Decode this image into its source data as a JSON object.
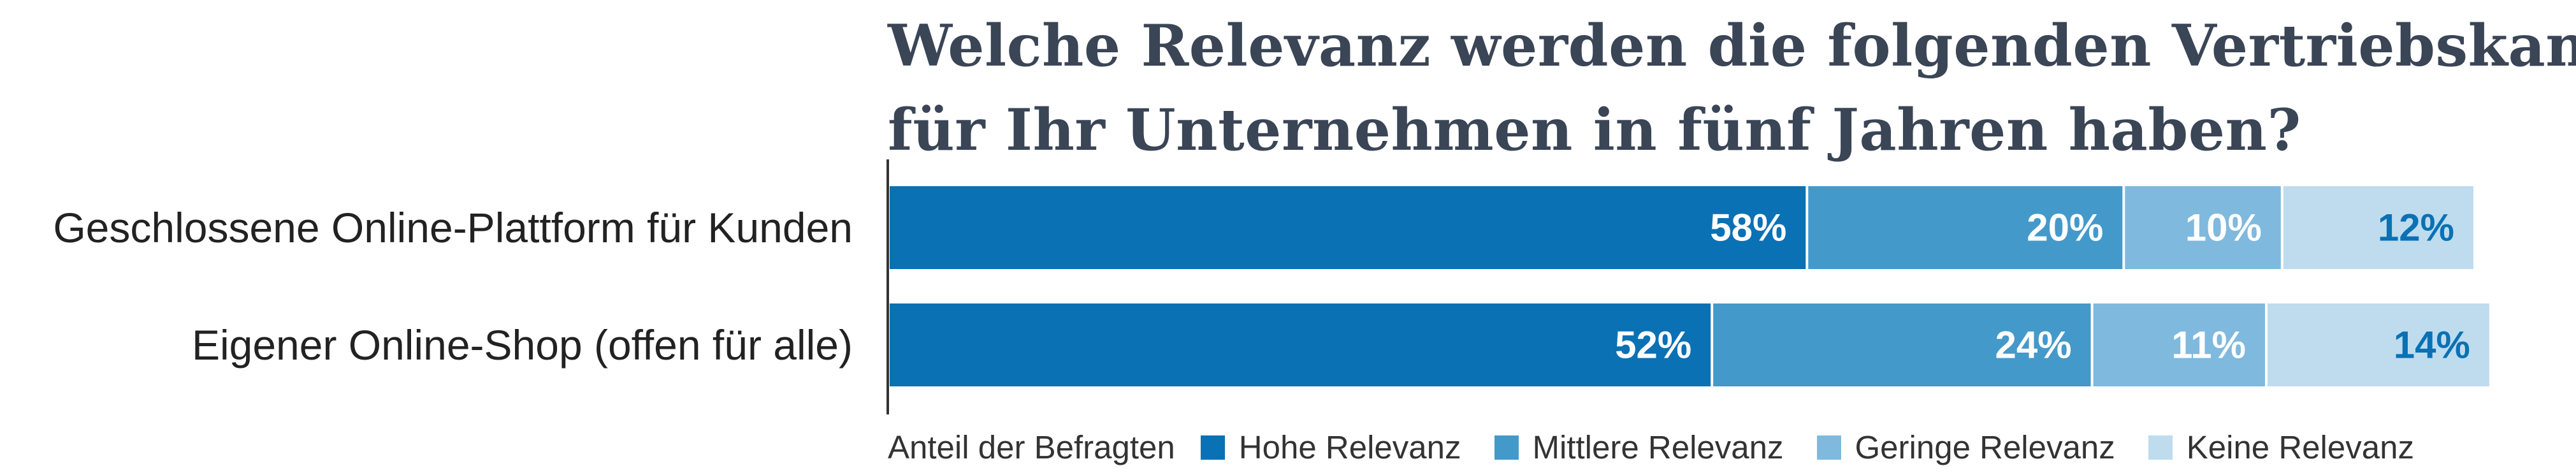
{
  "chart_data": {
    "type": "bar",
    "orientation": "horizontal",
    "stacked": true,
    "title_lines": [
      "Welche Relevanz werden die folgenden Vertriebskanäle",
      "für Ihr Unternehmen in fünf Jahren haben?"
    ],
    "categories": [
      "Geschlossene Online-Plattform für Kunden",
      "Eigener Online-Shop (offen für alle)"
    ],
    "series": [
      {
        "name": "Hohe Relevanz",
        "values": [
          58,
          52
        ],
        "labels": [
          "58%",
          "52%"
        ],
        "color": "#0a71b4",
        "label_color": "#ffffff"
      },
      {
        "name": "Mittlere Relevanz",
        "values": [
          20,
          24
        ],
        "labels": [
          "20%",
          "24%"
        ],
        "color": "#4499cb",
        "label_color": "#ffffff"
      },
      {
        "name": "Geringe Relevanz",
        "values": [
          10,
          11
        ],
        "labels": [
          "10%",
          "11%"
        ],
        "color": "#7fb9de",
        "label_color": "#ffffff"
      },
      {
        "name": "Keine Relevanz",
        "values": [
          12,
          14
        ],
        "labels": [
          "12%",
          "14%"
        ],
        "color": "#bedcee",
        "label_color": "#0a71b4"
      }
    ],
    "unit": "%",
    "legend_prefix": "Anteil der Befragten",
    "legend_position": "bottom",
    "grid": false
  }
}
